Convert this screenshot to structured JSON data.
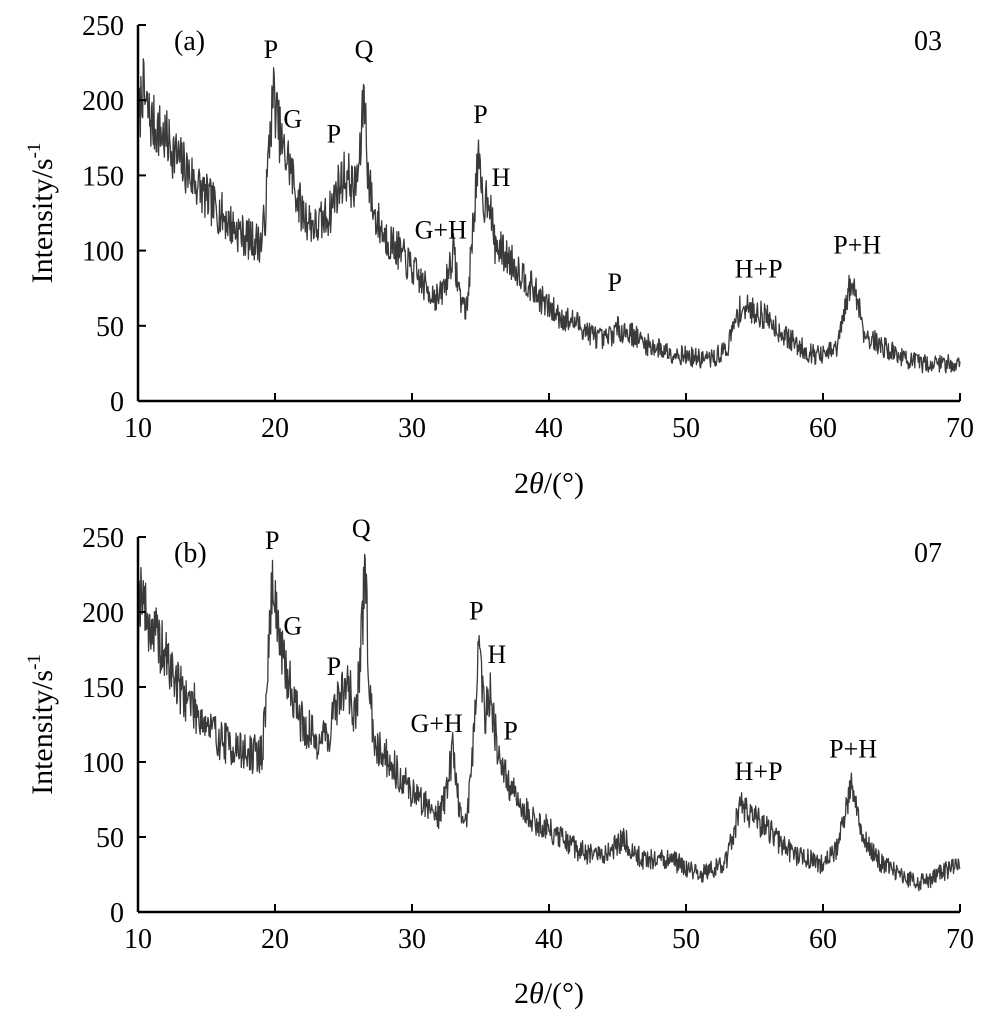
{
  "chart_data": [
    {
      "type": "line",
      "panel_label": "(a)",
      "sample": "03",
      "xlabel": "2θ/(°)",
      "xlabel_parts": [
        "2",
        "θ",
        "/(°)"
      ],
      "ylabel": "Intensity/s-1",
      "ylabel_parts": [
        "Intensity/s",
        "-1"
      ],
      "xlim": [
        10,
        70
      ],
      "ylim": [
        0,
        250
      ],
      "xticks": [
        "10",
        "20",
        "30",
        "40",
        "50",
        "60",
        "70"
      ],
      "yticks": [
        "0",
        "50",
        "100",
        "150",
        "200",
        "250"
      ],
      "grid": false,
      "series": [
        {
          "x": [
            10,
            10.3,
            10.6,
            11,
            12,
            13,
            14,
            15,
            16,
            17,
            18,
            19,
            19.3,
            19.6,
            19.9,
            20.2,
            20.6,
            21,
            21.5,
            22,
            23,
            24,
            24.5,
            25,
            25.4,
            25.8,
            26.2,
            26.5,
            26.8,
            27.2,
            28,
            29,
            30,
            31,
            32,
            32.5,
            33,
            33.5,
            34,
            34.4,
            34.8,
            35.2,
            35.6,
            36,
            37,
            38,
            39,
            40,
            41,
            42,
            43,
            44,
            45,
            46,
            47,
            48,
            49,
            50,
            51,
            52,
            53,
            53.5,
            54,
            55,
            56,
            57,
            58,
            59,
            60,
            61,
            61.5,
            62,
            62.5,
            63,
            64,
            65,
            66,
            67,
            68,
            69,
            70
          ],
          "y": [
            175,
            210,
            195,
            185,
            175,
            160,
            148,
            135,
            125,
            115,
            108,
            105,
            125,
            175,
            205,
            185,
            165,
            160,
            140,
            125,
            115,
            125,
            140,
            150,
            148,
            140,
            160,
            210,
            150,
            125,
            110,
            100,
            88,
            75,
            68,
            80,
            100,
            70,
            60,
            110,
            160,
            130,
            140,
            105,
            95,
            85,
            72,
            62,
            55,
            52,
            45,
            40,
            48,
            45,
            38,
            35,
            32,
            30,
            28,
            28,
            35,
            50,
            62,
            60,
            55,
            45,
            38,
            32,
            30,
            35,
            55,
            78,
            70,
            45,
            38,
            33,
            28,
            25,
            25,
            25,
            25
          ]
        }
      ],
      "annotations": [
        {
          "text": "P",
          "x": 19.7,
          "y": 228
        },
        {
          "text": "G",
          "x": 21.3,
          "y": 182
        },
        {
          "text": "P",
          "x": 24.3,
          "y": 172
        },
        {
          "text": "Q",
          "x": 26.5,
          "y": 228
        },
        {
          "text": "G+H",
          "x": 32.1,
          "y": 108
        },
        {
          "text": "P",
          "x": 35,
          "y": 185
        },
        {
          "text": "H",
          "x": 36.5,
          "y": 143
        },
        {
          "text": "P",
          "x": 44.8,
          "y": 73
        },
        {
          "text": "H+P",
          "x": 55.3,
          "y": 82
        },
        {
          "text": "P+H",
          "x": 62.5,
          "y": 98
        }
      ]
    },
    {
      "type": "line",
      "panel_label": "(b)",
      "sample": "07",
      "xlabel": "2θ/(°)",
      "xlabel_parts": [
        "2",
        "θ",
        "/(°)"
      ],
      "ylabel": "Intensity/s-1",
      "ylabel_parts": [
        "Intensity/s",
        "-1"
      ],
      "xlim": [
        10,
        70
      ],
      "ylim": [
        0,
        250
      ],
      "xticks": [
        "10",
        "20",
        "30",
        "40",
        "50",
        "60",
        "70"
      ],
      "yticks": [
        "0",
        "50",
        "100",
        "150",
        "200",
        "250"
      ],
      "grid": false,
      "series": [
        {
          "x": [
            10,
            10.3,
            10.6,
            11,
            12,
            13,
            14,
            15,
            16,
            17,
            18,
            19,
            19.3,
            19.6,
            19.9,
            20.2,
            20.6,
            21,
            21.5,
            22,
            23,
            24,
            24.5,
            25,
            25.4,
            25.8,
            26.2,
            26.6,
            26.9,
            27.3,
            28,
            29,
            30,
            31,
            32,
            32.5,
            33,
            33.5,
            34,
            34.5,
            34.9,
            35.3,
            35.7,
            36.2,
            37,
            38,
            39,
            40,
            41,
            42,
            43,
            44,
            45,
            45.5,
            46,
            47,
            48,
            49,
            50,
            51,
            52,
            53,
            53.5,
            54,
            55,
            56,
            57,
            58,
            59,
            60,
            61,
            61.5,
            62,
            62.5,
            63,
            64,
            65,
            66,
            67,
            68,
            69,
            70
          ],
          "y": [
            200,
            220,
            195,
            190,
            170,
            150,
            138,
            125,
            115,
            110,
            105,
            105,
            130,
            190,
            225,
            190,
            165,
            155,
            140,
            125,
            115,
            120,
            140,
            148,
            150,
            130,
            160,
            235,
            140,
            115,
            105,
            92,
            80,
            72,
            65,
            80,
            110,
            65,
            60,
            120,
            180,
            130,
            150,
            110,
            85,
            70,
            60,
            55,
            48,
            42,
            38,
            38,
            45,
            50,
            40,
            35,
            35,
            34,
            30,
            25,
            28,
            35,
            55,
            70,
            62,
            55,
            45,
            38,
            35,
            32,
            42,
            60,
            85,
            70,
            48,
            35,
            28,
            22,
            20,
            22,
            28,
            30
          ]
        }
      ],
      "annotations": [
        {
          "text": "P",
          "x": 19.8,
          "y": 242
        },
        {
          "text": "G",
          "x": 21.3,
          "y": 185
        },
        {
          "text": "P",
          "x": 24.3,
          "y": 158
        },
        {
          "text": "Q",
          "x": 26.3,
          "y": 250
        },
        {
          "text": "G+H",
          "x": 31.8,
          "y": 120
        },
        {
          "text": "P",
          "x": 34.7,
          "y": 195
        },
        {
          "text": "H",
          "x": 36.2,
          "y": 166
        },
        {
          "text": "P",
          "x": 37.2,
          "y": 115
        },
        {
          "text": "H+P",
          "x": 55.3,
          "y": 88
        },
        {
          "text": "P+H",
          "x": 62.2,
          "y": 103
        }
      ]
    }
  ]
}
